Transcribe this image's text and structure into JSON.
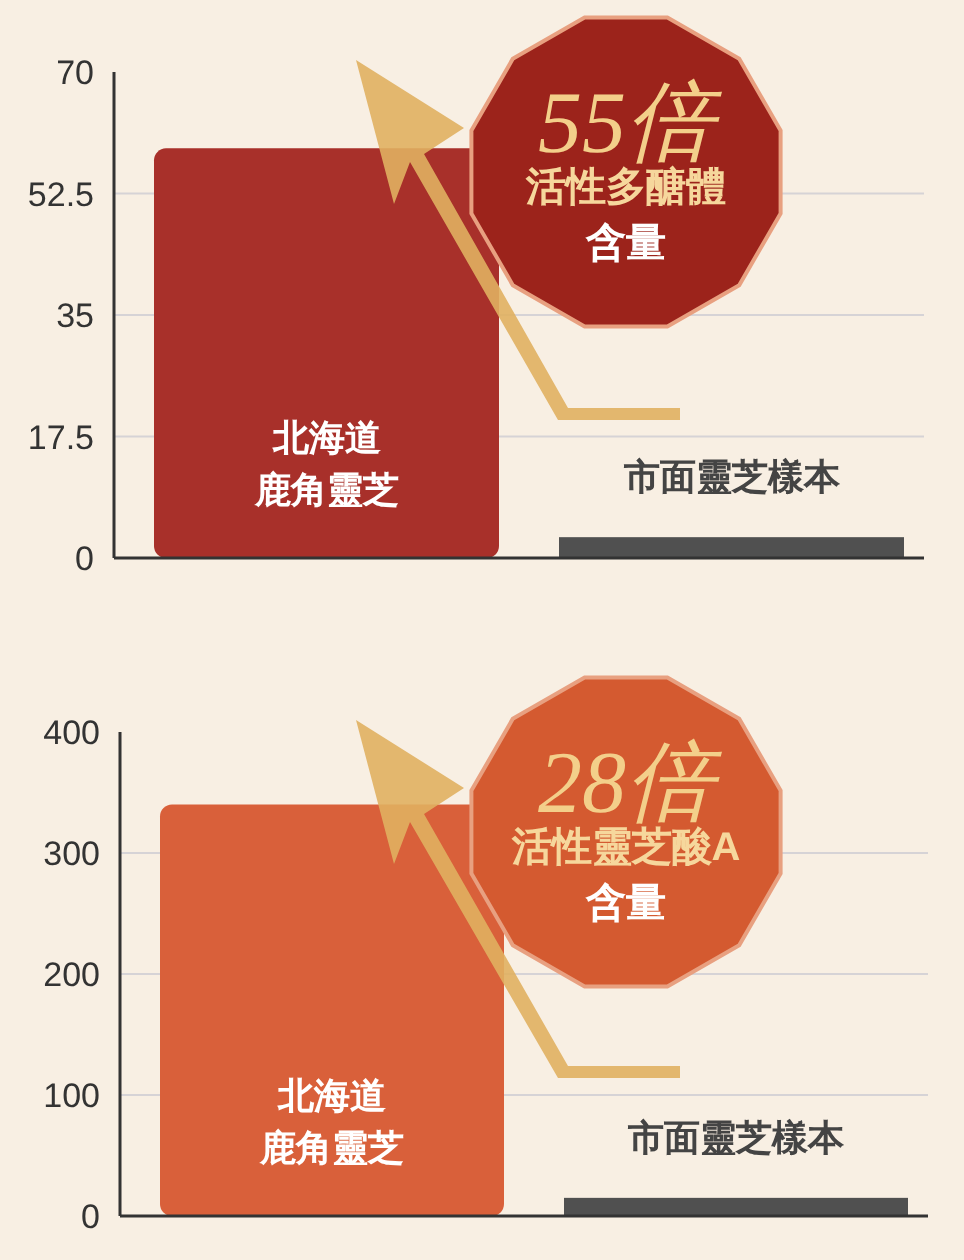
{
  "chart_data": [
    {
      "type": "bar",
      "categories": [
        "北海道鹿角靈芝",
        "市面靈芝樣本"
      ],
      "values": [
        59,
        3
      ],
      "colors": [
        "#a8302a",
        "#505050"
      ],
      "ylim": [
        0,
        70
      ],
      "yticks": [
        0,
        17.5,
        35,
        52.5,
        70
      ],
      "grid": "y",
      "annotations": [
        "55倍",
        "活性多醣體",
        "含量"
      ]
    },
    {
      "type": "bar",
      "categories": [
        "北海道鹿角靈芝",
        "市面靈芝樣本"
      ],
      "values": [
        340,
        15
      ],
      "colors": [
        "#d9603a",
        "#505050"
      ],
      "ylim": [
        0,
        400
      ],
      "yticks": [
        0,
        100,
        200,
        300,
        400
      ],
      "grid": "y",
      "annotations": [
        "28倍",
        "活性靈芝酸A",
        "含量"
      ]
    }
  ]
}
